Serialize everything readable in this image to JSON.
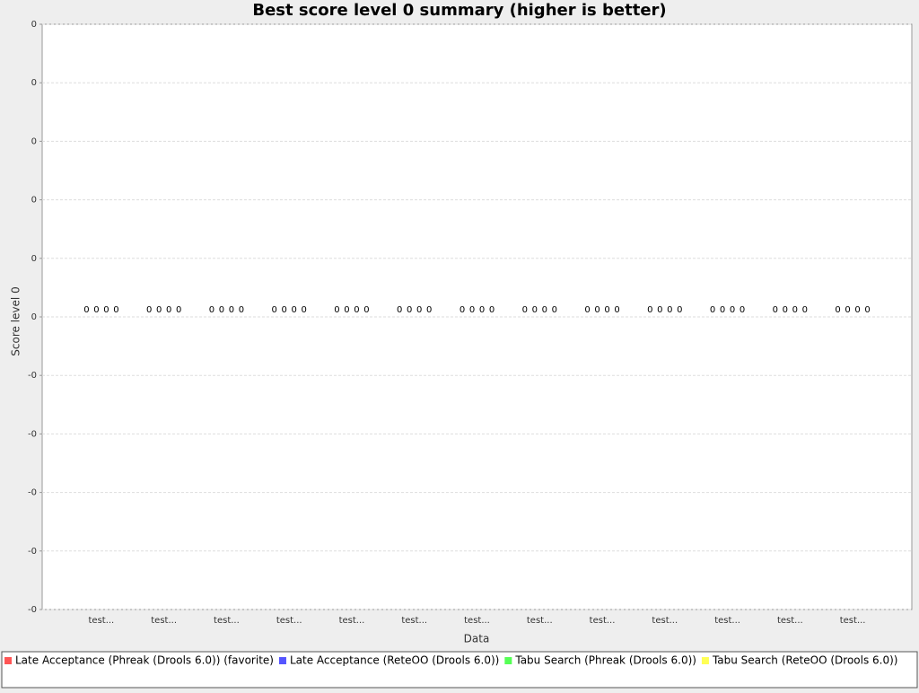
{
  "chart_data": {
    "type": "bar",
    "title": "Best score level 0 summary (higher is better)",
    "x_label": "Data",
    "y_label": "Score level 0",
    "categories": [
      "test...",
      "test...",
      "test...",
      "test...",
      "test...",
      "test...",
      "test...",
      "test...",
      "test...",
      "test...",
      "test...",
      "test...",
      "test..."
    ],
    "series": [
      {
        "name": "Late Acceptance (Phreak (Drools 6.0)) (favorite)",
        "color": "#ff5555",
        "values": [
          0,
          0,
          0,
          0,
          0,
          0,
          0,
          0,
          0,
          0,
          0,
          0,
          0
        ],
        "value_labels": [
          "0",
          "0",
          "0",
          "0",
          "0",
          "0",
          "0",
          "0",
          "0",
          "0",
          "0",
          "0",
          "0"
        ]
      },
      {
        "name": "Late Acceptance (ReteOO (Drools 6.0))",
        "color": "#5555ff",
        "values": [
          0,
          0,
          0,
          0,
          0,
          0,
          0,
          0,
          0,
          0,
          0,
          0,
          0
        ],
        "value_labels": [
          "0",
          "0",
          "0",
          "0",
          "0",
          "0",
          "0",
          "0",
          "0",
          "0",
          "0",
          "0",
          "0"
        ]
      },
      {
        "name": "Tabu Search (Phreak (Drools 6.0))",
        "color": "#55ff55",
        "values": [
          0,
          0,
          0,
          0,
          0,
          0,
          0,
          0,
          0,
          0,
          0,
          0,
          0
        ],
        "value_labels": [
          "0",
          "0",
          "0",
          "0",
          "0",
          "0",
          "0",
          "0",
          "0",
          "0",
          "0",
          "0",
          "0"
        ]
      },
      {
        "name": "Tabu Search (ReteOO (Drools 6.0))",
        "color": "#ffff55",
        "values": [
          0,
          0,
          0,
          0,
          0,
          0,
          0,
          0,
          0,
          0,
          0,
          0,
          0
        ],
        "value_labels": [
          "0",
          "0",
          "0",
          "0",
          "0",
          "0",
          "0",
          "0",
          "0",
          "0",
          "0",
          "0",
          "0"
        ]
      }
    ],
    "ylim": [
      -0.5,
      0.5
    ],
    "yticks": [
      {
        "value": 0.5,
        "label": "0"
      },
      {
        "value": 0.4,
        "label": "0"
      },
      {
        "value": 0.3,
        "label": "0"
      },
      {
        "value": 0.2,
        "label": "0"
      },
      {
        "value": 0.1,
        "label": "0"
      },
      {
        "value": 0,
        "label": "0"
      },
      {
        "value": -0.1,
        "label": "-0"
      },
      {
        "value": -0.2,
        "label": "-0"
      },
      {
        "value": -0.3,
        "label": "-0"
      },
      {
        "value": -0.4,
        "label": "-0"
      },
      {
        "value": -0.5,
        "label": "-0"
      }
    ],
    "grid": true,
    "legend": "bottom"
  }
}
